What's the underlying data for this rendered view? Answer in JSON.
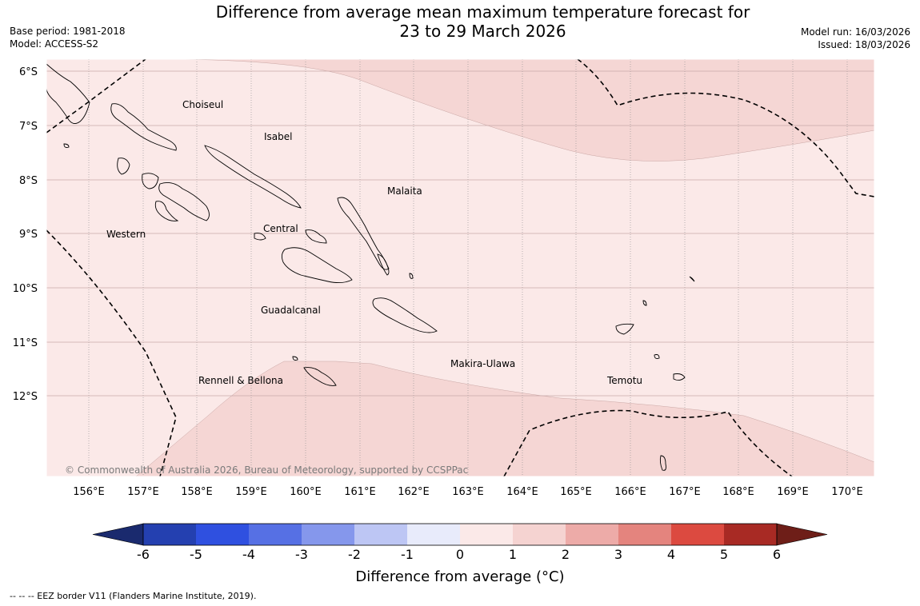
{
  "title_line1": "Difference from average mean maximum temperature forecast for",
  "title_line2": "23 to 29 March 2026",
  "base_period": "Base period: 1981-2018",
  "model": "Model: ACCESS-S2",
  "model_run": "Model run: 16/03/2026",
  "issued": "Issued: 18/03/2026",
  "lon_labels": [
    "156°E",
    "157°E",
    "158°E",
    "159°E",
    "160°E",
    "161°E",
    "162°E",
    "163°E",
    "164°E",
    "165°E",
    "166°E",
    "167°E",
    "168°E",
    "169°E",
    "170°E"
  ],
  "lat_labels": [
    "6°S",
    "7°S",
    "8°S",
    "9°S",
    "10°S",
    "11°S",
    "12°S"
  ],
  "regions": [
    "Choiseul",
    "Isabel",
    "Malaita",
    "Central",
    "Western",
    "Guadalcanal",
    "Makira-Ulawa",
    "Temotu",
    "Rennell & Bellona"
  ],
  "copyright": "© Commonwealth of Australia 2026, Bureau of Meteorology, supported by CCSPPac",
  "colorbar": {
    "labels": [
      "-6",
      "-5",
      "-4",
      "-3",
      "-2",
      "-1",
      "0",
      "1",
      "2",
      "3",
      "4",
      "5",
      "6"
    ],
    "title": "Difference from average (°C)",
    "colors": [
      "#1a2a6e",
      "#2440b0",
      "#2f50e0",
      "#5670e4",
      "#8597ec",
      "#bdc6f4",
      "#e8ebfb",
      "#fbe9e8",
      "#f5d3d1",
      "#edaba8",
      "#e4847e",
      "#dc4a40",
      "#a82a24",
      "#6e1e18"
    ]
  },
  "footnote": "--  --  -- EEZ border V11 (Flanders Marine Institute, 2019).",
  "map_fill": {
    "light": "#fbe9e8",
    "medium": "#f5d6d4"
  }
}
